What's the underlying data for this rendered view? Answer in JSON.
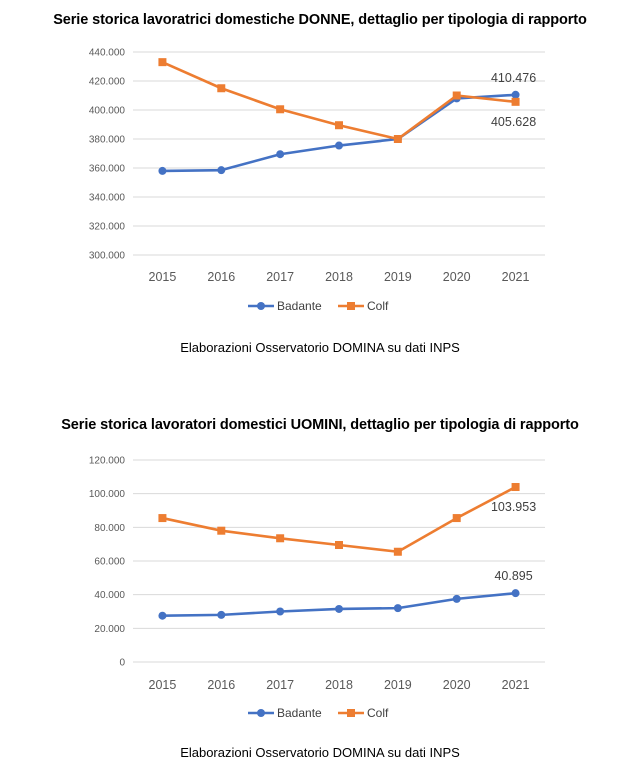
{
  "chart_data": [
    {
      "type": "line",
      "title": "Serie storica lavoratrici domestiche DONNE, dettaglio per tipologia di rapporto",
      "categories": [
        "2015",
        "2016",
        "2017",
        "2018",
        "2019",
        "2020",
        "2021"
      ],
      "series": [
        {
          "name": "Badante",
          "color": "#4472c4",
          "values": [
            358000,
            358500,
            369500,
            375500,
            380000,
            408000,
            410476
          ]
        },
        {
          "name": "Colf",
          "color": "#ed7d31",
          "values": [
            433000,
            415000,
            400500,
            389500,
            380000,
            410000,
            405628
          ]
        }
      ],
      "ylim": [
        300000,
        440000
      ],
      "yticks": [
        300000,
        320000,
        340000,
        360000,
        380000,
        400000,
        420000,
        440000
      ],
      "ytick_labels": [
        "300.000",
        "320.000",
        "340.000",
        "360.000",
        "380.000",
        "400.000",
        "420.000",
        "440.000"
      ],
      "annotations": [
        {
          "series": 0,
          "index": 6,
          "text": "410.476",
          "pos": "above"
        },
        {
          "series": 1,
          "index": 6,
          "text": "405.628",
          "pos": "below"
        }
      ],
      "grid": true,
      "legend": "bottom",
      "source": "Elaborazioni Osservatorio DOMINA su dati INPS"
    },
    {
      "type": "line",
      "title": "Serie storica lavoratori domestici UOMINI, dettaglio per tipologia di rapporto",
      "categories": [
        "2015",
        "2016",
        "2017",
        "2018",
        "2019",
        "2020",
        "2021"
      ],
      "series": [
        {
          "name": "Badante",
          "color": "#4472c4",
          "values": [
            27500,
            28000,
            30000,
            31500,
            32000,
            37500,
            40895
          ]
        },
        {
          "name": "Colf",
          "color": "#ed7d31",
          "values": [
            85500,
            78000,
            73500,
            69500,
            65500,
            85500,
            103953
          ]
        }
      ],
      "ylim": [
        0,
        120000
      ],
      "yticks": [
        0,
        20000,
        40000,
        60000,
        80000,
        100000,
        120000
      ],
      "ytick_labels": [
        "0",
        "20.000",
        "40.000",
        "60.000",
        "80.000",
        "100.000",
        "120.000"
      ],
      "annotations": [
        {
          "series": 1,
          "index": 6,
          "text": "103.953",
          "pos": "below"
        },
        {
          "series": 0,
          "index": 6,
          "text": "40.895",
          "pos": "above"
        }
      ],
      "grid": true,
      "legend": "bottom",
      "source": "Elaborazioni Osservatorio DOMINA su dati INPS"
    }
  ]
}
